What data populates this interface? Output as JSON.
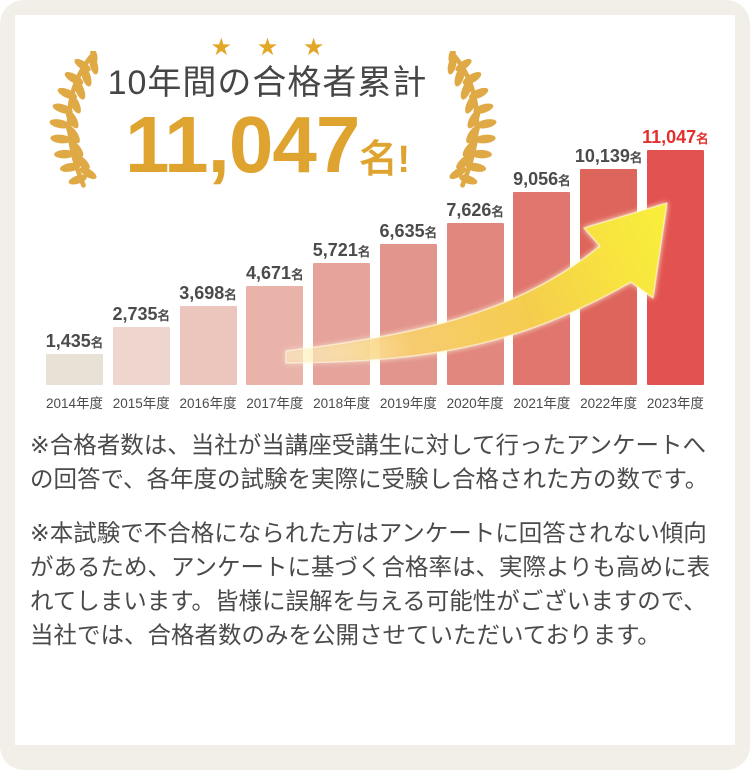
{
  "badge": {
    "stars": "★ ★ ★",
    "title": "10年間の合格者累計",
    "number": "11,047",
    "unit": "名!"
  },
  "chart_data": {
    "type": "bar",
    "title": "10年間の合格者累計 11,047名",
    "categories": [
      "2014年度",
      "2015年度",
      "2016年度",
      "2017年度",
      "2018年度",
      "2019年度",
      "2020年度",
      "2021年度",
      "2022年度",
      "2023年度"
    ],
    "values": [
      1435,
      2735,
      3698,
      4671,
      5721,
      6635,
      7626,
      9056,
      10139,
      11047
    ],
    "value_labels": [
      "1,435",
      "2,735",
      "3,698",
      "4,671",
      "5,721",
      "6,635",
      "7,626",
      "9,056",
      "10,139",
      "11,047"
    ],
    "value_unit": "名",
    "ylim": [
      0,
      11047
    ],
    "grid": false,
    "legend": "none",
    "bar_colors": [
      "#e7e2d5",
      "#eed6ce",
      "#ecc5bc",
      "#eab3aa",
      "#e5a39c",
      "#e2958c",
      "#e1877e",
      "#e0766d",
      "#de655c",
      "#e25250"
    ],
    "label_color_default": "#4b4b4b",
    "label_color_highlight": "#e3302c",
    "annotations": [
      "growth-arrow from 2018 to 2023"
    ]
  },
  "notes": [
    "※合格者数は、当社が当講座受講生に対して行ったアンケートへの回答で、各年度の試験を実際に受験し合格された方の数です。",
    "※本試験で不合格になられた方はアンケートに回答されない傾向があるため、アンケートに基づく合格率は、実際よりも高めに表れてしまいます。皆様に誤解を与える可能性がございますので、当社では、合格者数のみを公開させていただいております。"
  ],
  "colors": {
    "gold": "#dfa32f",
    "laurel_gold": "#dfaa45",
    "star_gold": "#e2a727",
    "card_cream": "#f1efe8",
    "panel_white": "#ffffff",
    "text_dark": "#4a4a4a",
    "highlight_red": "#e3302c",
    "arrow_yellow": "#f9ee3c",
    "arrow_orange": "#f6c868"
  }
}
